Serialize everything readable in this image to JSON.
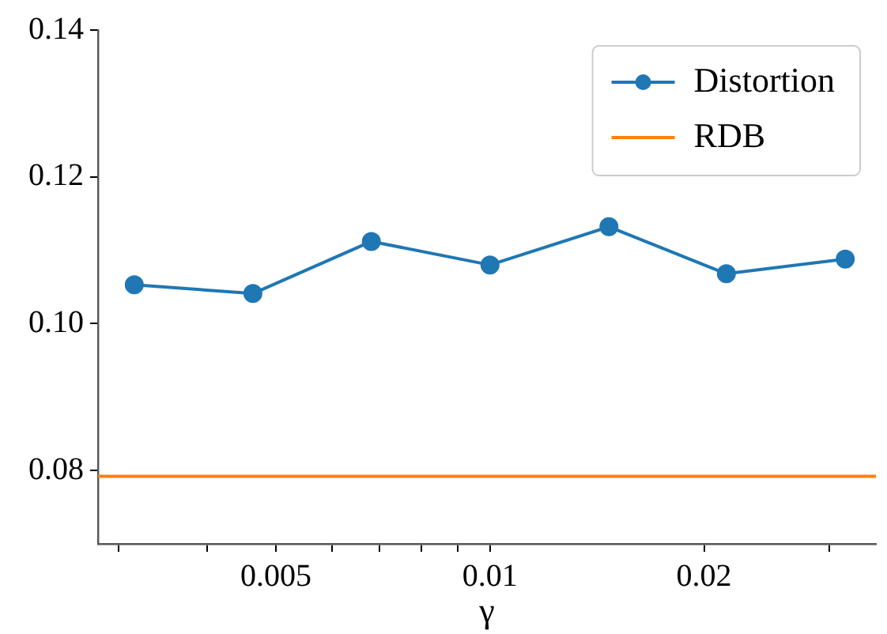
{
  "chart_data": {
    "type": "line",
    "xlabel": "γ",
    "log": "x",
    "grid": false,
    "legend": "top right",
    "marker": "circle",
    "line_style": "solid",
    "xlim": [
      0.00281,
      0.0349
    ],
    "xticks": [
      {
        "value": 0.003,
        "label": null
      },
      {
        "value": 0.004,
        "label": null
      },
      0.005,
      {
        "value": 0.006,
        "label": null
      },
      {
        "value": 0.007,
        "label": null
      },
      {
        "value": 0.008,
        "label": null
      },
      {
        "value": 0.009,
        "label": null
      },
      0.01,
      0.02,
      {
        "value": 0.03,
        "label": null
      }
    ],
    "ylim": [
      0.07,
      0.14
    ],
    "yticks": [
      {
        "value": 0.08,
        "label": "0.08"
      },
      {
        "value": 0.1,
        "label": "0.10"
      },
      {
        "value": 0.12,
        "label": "0.12"
      },
      {
        "value": 0.14,
        "label": "0.14"
      }
    ],
    "series": [
      {
        "name": "Distortion",
        "color": "#1f77b4",
        "x": [
          0.00316,
          0.00464,
          0.00681,
          0.01,
          0.0147,
          0.0215,
          0.0316
        ],
        "values": [
          0.1053,
          0.1041,
          0.1112,
          0.108,
          0.1132,
          0.1068,
          0.1088
        ]
      },
      {
        "name": "RDB",
        "color": "#ff7f0e",
        "marker": "none",
        "x": [
          0.00281,
          0.0349
        ],
        "values": [
          0.0792,
          0.0792
        ]
      }
    ]
  }
}
